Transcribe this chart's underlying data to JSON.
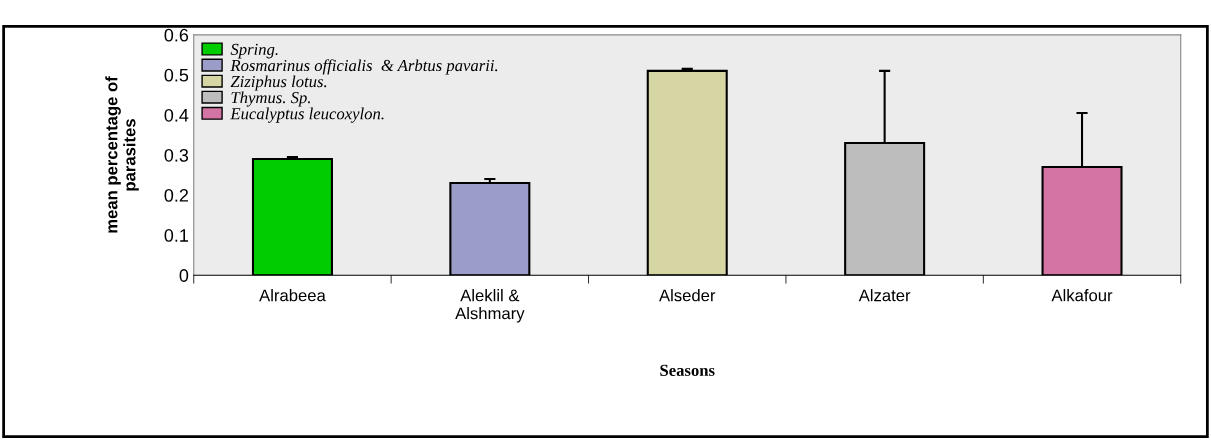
{
  "chart_data": {
    "type": "bar",
    "xlabel": "Seasons",
    "ylabel": "mean percentage of\nparasites",
    "categories": [
      "Alrabeea",
      "Aleklil &\nAlshmary",
      "Alseder",
      "Alzater",
      "Alkafour"
    ],
    "series": [
      {
        "name": "Spring.",
        "color": "#00cc00",
        "values": [
          0.29,
          null,
          null,
          null,
          null
        ],
        "errors": [
          [
            0.29,
            0.295
          ],
          null,
          null,
          null,
          null
        ]
      },
      {
        "name": "Rosmarinus officialis  & Arbtus pavarii.",
        "color": "#9c9cc8",
        "values": [
          null,
          0.23,
          null,
          null,
          null
        ],
        "errors": [
          null,
          [
            0.23,
            0.24
          ],
          null,
          null,
          null
        ]
      },
      {
        "name": "Ziziphus lotus.",
        "color": "#d6d6a4",
        "values": [
          null,
          null,
          0.51,
          null,
          null
        ],
        "errors": [
          null,
          null,
          [
            0.51,
            0.515
          ],
          null,
          null
        ]
      },
      {
        "name": "Thymus. Sp.",
        "color": "#bdbdbd",
        "values": [
          null,
          null,
          null,
          0.33,
          null
        ],
        "errors": [
          null,
          null,
          null,
          [
            0.33,
            0.51
          ],
          null
        ]
      },
      {
        "name": "Eucalyptus leucoxylon.",
        "color": "#d474a4",
        "values": [
          null,
          null,
          null,
          null,
          0.27
        ],
        "errors": [
          null,
          null,
          null,
          null,
          [
            0.27,
            0.405
          ]
        ]
      }
    ],
    "ylim": [
      0,
      0.6
    ],
    "yticks": [
      0,
      0.1,
      0.2,
      0.3,
      0.4,
      0.5,
      0.6
    ],
    "grid": false,
    "legend": "top left"
  }
}
